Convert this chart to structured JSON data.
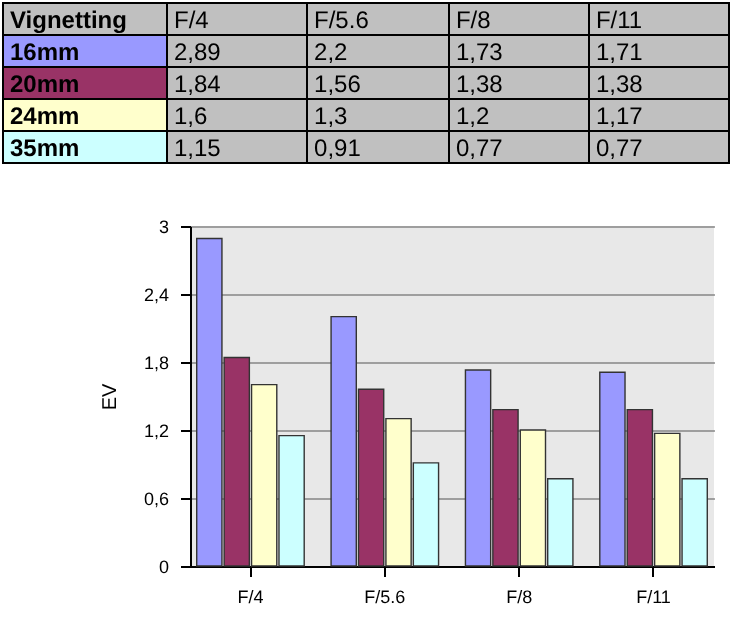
{
  "chart_data": {
    "type": "bar",
    "title": "Vignetting",
    "ylabel": "EV",
    "categories": [
      "F/4",
      "F/5.6",
      "F/8",
      "F/11"
    ],
    "series": [
      {
        "name": "16mm",
        "color": "#9999ff",
        "values": [
          2.89,
          2.2,
          1.73,
          1.71
        ],
        "value_labels": [
          "2,89",
          "2,2",
          "1,73",
          "1,71"
        ]
      },
      {
        "name": "20mm",
        "color": "#993366",
        "values": [
          1.84,
          1.56,
          1.38,
          1.38
        ],
        "value_labels": [
          "1,84",
          "1,56",
          "1,38",
          "1,38"
        ]
      },
      {
        "name": "24mm",
        "color": "#ffffcc",
        "values": [
          1.6,
          1.3,
          1.2,
          1.17
        ],
        "value_labels": [
          "1,6",
          "1,3",
          "1,2",
          "1,17"
        ]
      },
      {
        "name": "35mm",
        "color": "#ccffff",
        "values": [
          1.15,
          0.91,
          0.77,
          0.77
        ],
        "value_labels": [
          "1,15",
          "0,91",
          "0,77",
          "0,77"
        ]
      }
    ],
    "ylim": [
      0,
      3
    ],
    "yticks": [
      0,
      {
        "value": 0.6,
        "label": "0,6"
      },
      {
        "value": 1.2,
        "label": "1,2"
      },
      {
        "value": 1.8,
        "label": "1,8"
      },
      {
        "value": 2.4,
        "label": "2,4"
      },
      3
    ],
    "grid": "y"
  }
}
